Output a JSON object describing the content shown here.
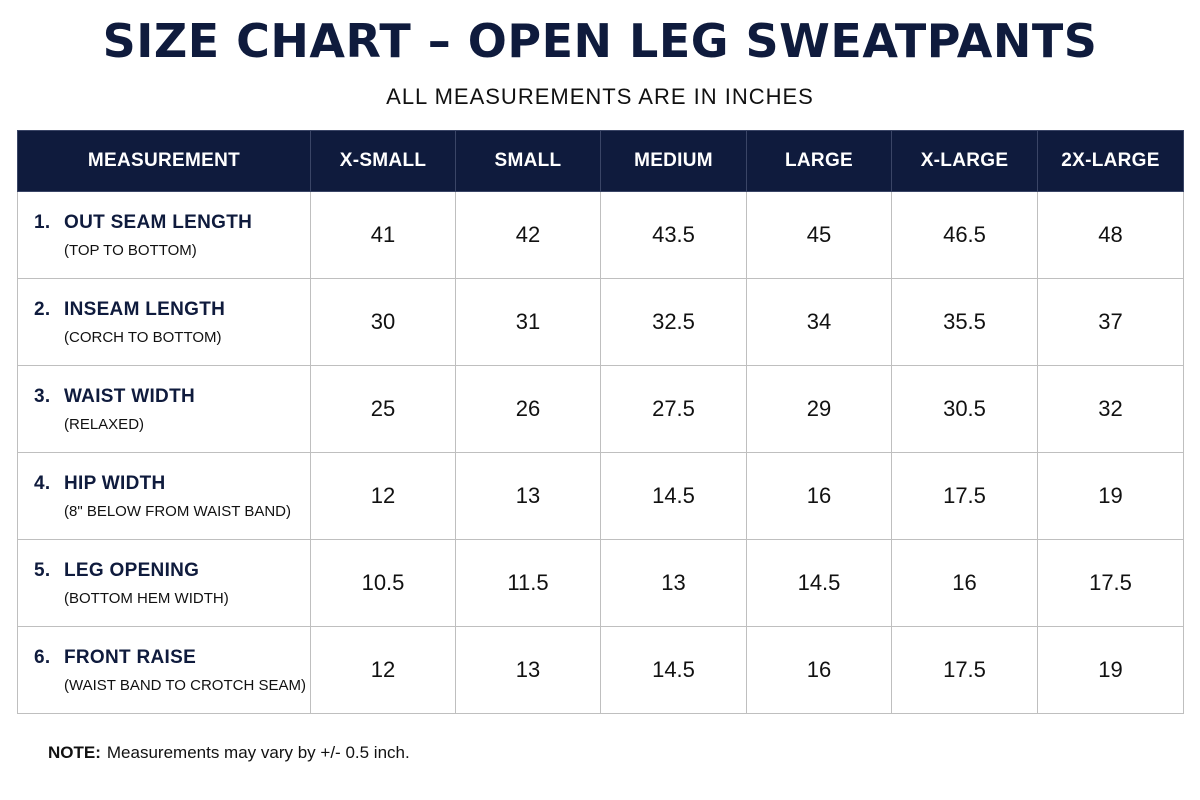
{
  "header": {
    "title": "SIZE CHART – OPEN LEG SWEATPANTS",
    "subtitle": "ALL MEASUREMENTS ARE IN INCHES"
  },
  "table": {
    "columns": [
      "MEASUREMENT",
      "X-SMALL",
      "SMALL",
      "MEDIUM",
      "LARGE",
      "X-LARGE",
      "2X-LARGE"
    ],
    "rows": [
      {
        "num": "1.",
        "name": "OUT SEAM LENGTH",
        "detail": "(TOP TO BOTTOM)",
        "values": [
          "41",
          "42",
          "43.5",
          "45",
          "46.5",
          "48"
        ]
      },
      {
        "num": "2.",
        "name": "INSEAM LENGTH",
        "detail": "(CORCH TO BOTTOM)",
        "values": [
          "30",
          "31",
          "32.5",
          "34",
          "35.5",
          "37"
        ]
      },
      {
        "num": "3.",
        "name": "WAIST WIDTH",
        "detail": "(RELAXED)",
        "values": [
          "25",
          "26",
          "27.5",
          "29",
          "30.5",
          "32"
        ]
      },
      {
        "num": "4.",
        "name": "HIP WIDTH",
        "detail": "(8\" BELOW FROM WAIST BAND)",
        "values": [
          "12",
          "13",
          "14.5",
          "16",
          "17.5",
          "19"
        ]
      },
      {
        "num": "5.",
        "name": "LEG OPENING",
        "detail": "(BOTTOM HEM WIDTH)",
        "values": [
          "10.5",
          "11.5",
          "13",
          "14.5",
          "16",
          "17.5"
        ]
      },
      {
        "num": "6.",
        "name": "FRONT RAISE",
        "detail": "(WAIST BAND TO CROTCH SEAM)",
        "values": [
          "12",
          "13",
          "14.5",
          "16",
          "17.5",
          "19"
        ]
      }
    ]
  },
  "note": {
    "label": "NOTE:",
    "text": "Measurements may vary by +/- 0.5 inch."
  },
  "colors": {
    "header_bg": "#0f1b3d",
    "header_text": "#ffffff",
    "title_text": "#0f1b3d",
    "grid_line": "#bfbfbf"
  }
}
